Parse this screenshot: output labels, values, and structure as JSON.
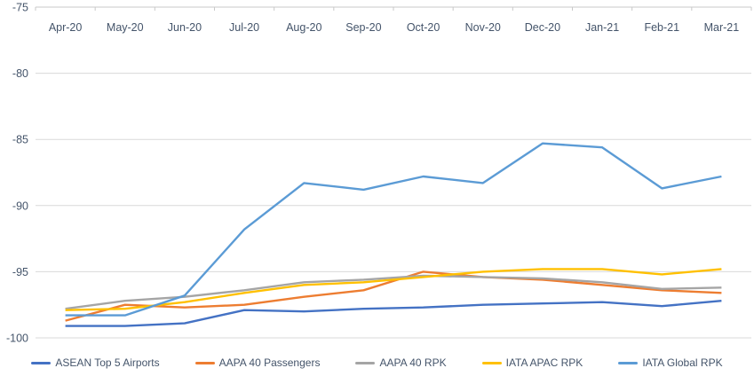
{
  "chart_data": {
    "type": "line",
    "title": "",
    "xlabel": "",
    "ylabel": "",
    "categories": [
      "Apr-20",
      "May-20",
      "Jun-20",
      "Jul-20",
      "Aug-20",
      "Sep-20",
      "Oct-20",
      "Nov-20",
      "Dec-20",
      "Jan-21",
      "Feb-21",
      "Mar-21"
    ],
    "series": [
      {
        "name": "ASEAN Top 5 Airports",
        "color": "#4472C4",
        "values": [
          -99.1,
          -99.1,
          -98.9,
          -97.9,
          -98.0,
          -97.8,
          -97.7,
          -97.5,
          -97.4,
          -97.3,
          -97.6,
          -97.2
        ]
      },
      {
        "name": "AAPA 40 Passengers",
        "color": "#ED7D31",
        "values": [
          -98.7,
          -97.5,
          -97.7,
          -97.5,
          -96.9,
          -96.4,
          -95.0,
          -95.4,
          -95.6,
          -96.0,
          -96.4,
          -96.6
        ]
      },
      {
        "name": "AAPA 40 RPK",
        "color": "#A5A5A5",
        "values": [
          -97.8,
          -97.2,
          -96.9,
          -96.4,
          -95.8,
          -95.6,
          -95.3,
          -95.4,
          -95.5,
          -95.8,
          -96.3,
          -96.2
        ]
      },
      {
        "name": "IATA APAC RPK",
        "color": "#FFC000",
        "values": [
          -97.9,
          -97.8,
          -97.3,
          -96.6,
          -96.0,
          -95.8,
          -95.4,
          -95.0,
          -94.8,
          -94.8,
          -95.2,
          -94.8
        ]
      },
      {
        "name": "IATA Global RPK",
        "color": "#5B9BD5",
        "values": [
          -98.3,
          -98.3,
          -96.8,
          -91.8,
          -88.3,
          -88.8,
          -87.8,
          -88.3,
          -85.3,
          -85.6,
          -88.7,
          -87.8
        ]
      }
    ],
    "y_axis": {
      "max": -75,
      "min": -100,
      "step": 5,
      "tick_labels": [
        "-75",
        "-80",
        "-85",
        "-90",
        "-95",
        "-100"
      ]
    },
    "grid": true,
    "legend_position": "bottom",
    "gridline_color": "#D9D9D9",
    "axis_line_color": "#C9C9C9",
    "label_color": "#44546A"
  }
}
